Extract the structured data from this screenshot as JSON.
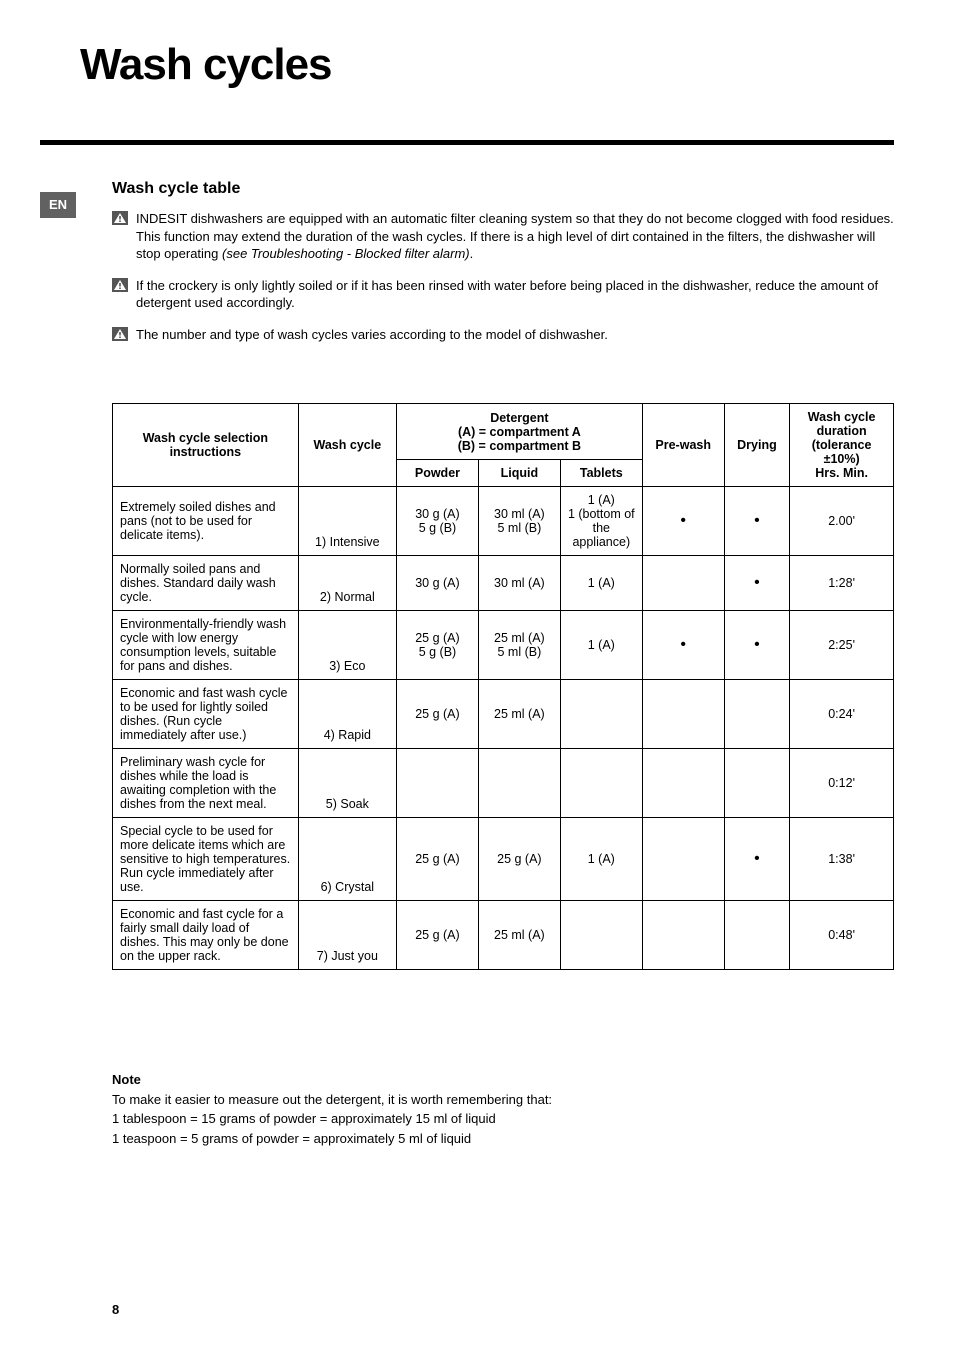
{
  "page": {
    "title": "Wash cycles",
    "lang_tab": "EN",
    "page_number": "8"
  },
  "section": {
    "heading": "Wash cycle table",
    "info1_pre": "INDESIT dishwashers are equipped with an automatic filter cleaning system so that they do not become clogged with food residues.  This function may extend the duration of the wash cycles. If there is a high level of dirt contained in the filters, the dishwasher will stop operating ",
    "info1_em": "(see Troubleshooting - Blocked filter alarm)",
    "info1_post": ".",
    "info2": "If the crockery is only lightly soiled or if it has been rinsed with water before being placed in the dishwasher, reduce the amount of detergent used accordingly.",
    "info3": "The number and type of wash cycles varies according to the model of dishwasher."
  },
  "table": {
    "headers": {
      "instructions": "Wash cycle selection instructions",
      "cycle": "Wash cycle",
      "detergent_top": "Detergent\n(A) = compartment A\n(B) = compartment B",
      "powder": "Powder",
      "liquid": "Liquid",
      "tablets": "Tablets",
      "prewash": "Pre-wash",
      "drying": "Drying",
      "duration": "Wash cycle duration (tolerance ±10%)\nHrs. Min."
    },
    "rows": [
      {
        "instr": "Extremely soiled dishes and pans (not to be used for delicate items).",
        "cycle": "1) Intensive",
        "powder": "30 g (A)\n5 g (B)",
        "liquid": "30 ml (A)\n5 ml (B)",
        "tablets": "1 (A)\n1 (bottom of the appliance)",
        "prewash": "•",
        "drying": "•",
        "duration": "2.00'"
      },
      {
        "instr": "Normally soiled pans and dishes. Standard daily wash cycle.",
        "cycle": "2) Normal",
        "powder": "30 g (A)",
        "liquid": "30 ml (A)",
        "tablets": "1 (A)",
        "prewash": "",
        "drying": "•",
        "duration": "1:28'"
      },
      {
        "instr": "Environmentally-friendly wash cycle with low energy consumption levels, suitable for pans and dishes.",
        "cycle": "3) Eco",
        "powder": "25 g (A)\n5 g (B)",
        "liquid": "25 ml (A)\n5 ml (B)",
        "tablets": "1 (A)",
        "prewash": "•",
        "drying": "•",
        "duration": "2:25'"
      },
      {
        "instr": "Economic and fast wash cycle to be used for lightly soiled dishes. (Run cycle immediately after use.)",
        "cycle": "4) Rapid",
        "powder": "25 g (A)",
        "liquid": "25 ml (A)",
        "tablets": "",
        "prewash": "",
        "drying": "",
        "duration": "0:24'"
      },
      {
        "instr": "Preliminary wash cycle for dishes while the load is awaiting completion with the dishes from the next meal.",
        "cycle": "5) Soak",
        "powder": "",
        "liquid": "",
        "tablets": "",
        "prewash": "",
        "drying": "",
        "duration": "0:12'"
      },
      {
        "instr": "Special cycle to be used for more delicate items which are sensitive to high temperatures. Run cycle immediately after use.",
        "cycle": "6) Crystal",
        "powder": "25 g (A)",
        "liquid": "25 g (A)",
        "tablets": "1 (A)",
        "prewash": "",
        "drying": "•",
        "duration": "1:38'"
      },
      {
        "instr": "Economic and fast cycle for a fairly small daily load of dishes. This may only be done on the upper rack.",
        "cycle": "7) Just you",
        "powder": "25 g (A)",
        "liquid": "25 ml (A)",
        "tablets": "",
        "prewash": "",
        "drying": "",
        "duration": "0:48'"
      }
    ]
  },
  "note": {
    "title": "Note",
    "line1": "To make it easier to measure out the detergent, it is worth remembering that:",
    "line2": "1 tablespoon = 15 grams of powder = approximately 15 ml of liquid",
    "line3": "1 teaspoon = 5 grams of powder = approximately 5 ml of liquid"
  },
  "style": {
    "accent_color": "#616161",
    "text_color": "#000000",
    "background": "#ffffff",
    "dot_glyph": "•"
  }
}
